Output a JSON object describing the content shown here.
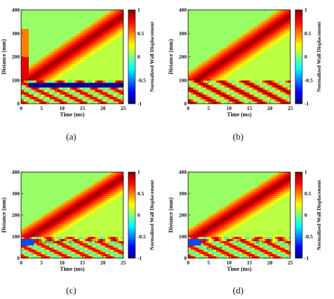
{
  "chart_data": [
    {
      "type": "heatmap",
      "panel": "(a)",
      "xlabel": "Time (ms)",
      "ylabel": "Distance (mm)",
      "xlim": [
        0,
        25
      ],
      "ylim": [
        0,
        400
      ],
      "xticks": [
        "0",
        "5",
        "10",
        "15",
        "20",
        "25"
      ],
      "yticks": [
        "0",
        "100",
        "200",
        "300",
        "400"
      ],
      "colorbar": {
        "label": "Normalized Wall Displacement",
        "ticks": [
          "1",
          "0.5",
          "0",
          "-0.5",
          "-1"
        ],
        "range": [
          -1,
          1
        ]
      },
      "markers": [
        {
          "x": 1.5,
          "y": 100
        },
        {
          "x": 4,
          "y": 90
        }
      ]
    },
    {
      "type": "heatmap",
      "panel": "(b)",
      "xlabel": "Time (ms)",
      "ylabel": "Distance (mm)",
      "xlim": [
        0,
        25
      ],
      "ylim": [
        0,
        400
      ],
      "xticks": [
        "0",
        "5",
        "10",
        "15",
        "20",
        "25"
      ],
      "yticks": [
        "0",
        "100",
        "200",
        "300",
        "400"
      ],
      "colorbar": {
        "label": "Normalized Wall Displacement",
        "ticks": [
          "1",
          "0.5",
          "0",
          "-0.5",
          "-1"
        ],
        "range": [
          -1,
          1
        ]
      },
      "markers": [
        {
          "x": 2,
          "y": 100
        },
        {
          "x": 5,
          "y": 100
        }
      ]
    },
    {
      "type": "heatmap",
      "panel": "(c)",
      "xlabel": "Time (ms)",
      "ylabel": "Distance (mm)",
      "xlim": [
        0,
        25
      ],
      "ylim": [
        0,
        400
      ],
      "xticks": [
        "0",
        "5",
        "10",
        "15",
        "20",
        "25"
      ],
      "yticks": [
        "0",
        "100",
        "200",
        "300",
        "400"
      ],
      "colorbar": {
        "label": "Normalized Wall Displacement",
        "ticks": [
          "1",
          "0.5",
          "0",
          "-0.5",
          "-1"
        ],
        "range": [
          -1,
          1
        ]
      },
      "markers": [
        {
          "x": 5,
          "y": 75
        },
        {
          "x": 6,
          "y": 75
        },
        {
          "x": 7,
          "y": 75
        },
        {
          "x": 8,
          "y": 75
        },
        {
          "x": 9,
          "y": 75
        },
        {
          "x": 10,
          "y": 75
        },
        {
          "x": 12,
          "y": 75
        },
        {
          "x": 13,
          "y": 80
        },
        {
          "x": 17,
          "y": 80
        },
        {
          "x": 18,
          "y": 80
        },
        {
          "x": 23,
          "y": 80
        }
      ]
    },
    {
      "type": "heatmap",
      "panel": "(d)",
      "xlabel": "Time (ms)",
      "ylabel": "Distance (mm)",
      "xlim": [
        0,
        25
      ],
      "ylim": [
        0,
        400
      ],
      "xticks": [
        "0",
        "5",
        "10",
        "15",
        "20",
        "25"
      ],
      "yticks": [
        "0",
        "100",
        "200",
        "300",
        "400"
      ],
      "colorbar": {
        "label": "Normalized Wall Displacement",
        "ticks": [
          "1",
          "0.5",
          "0",
          "-0.5",
          "-1"
        ],
        "range": [
          -1,
          1
        ]
      },
      "markers": [
        {
          "x": 5,
          "y": 45
        },
        {
          "x": 6,
          "y": 45
        },
        {
          "x": 7,
          "y": 45
        },
        {
          "x": 8,
          "y": 45
        },
        {
          "x": 10,
          "y": 80
        },
        {
          "x": 12,
          "y": 80
        },
        {
          "x": 13,
          "y": 80
        },
        {
          "x": 17,
          "y": 75
        },
        {
          "x": 18,
          "y": 80
        },
        {
          "x": 20,
          "y": 75
        },
        {
          "x": 24,
          "y": 80
        }
      ]
    }
  ]
}
